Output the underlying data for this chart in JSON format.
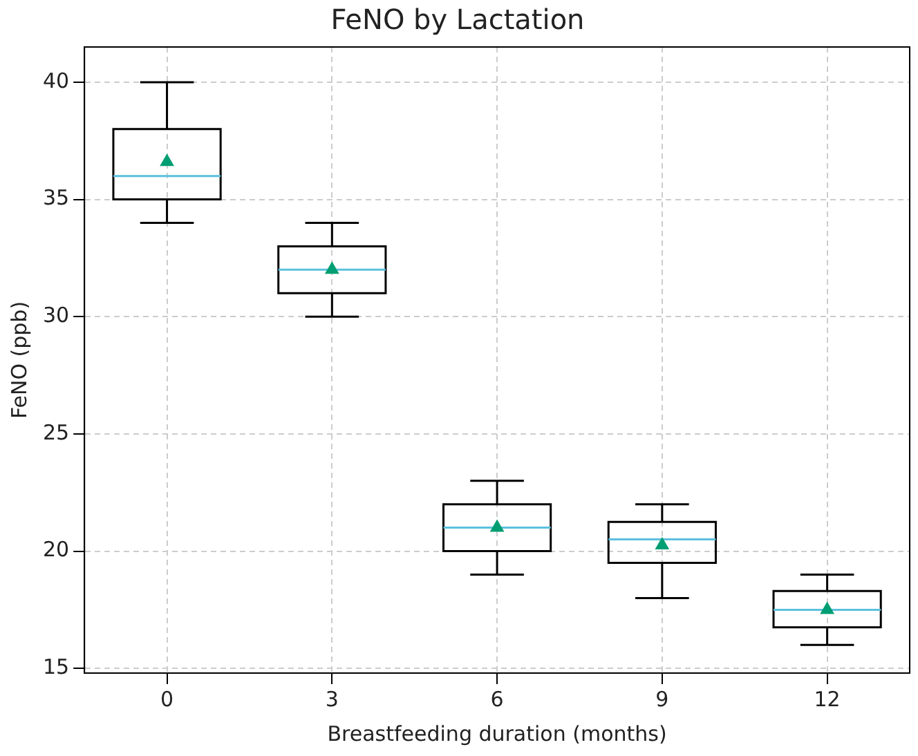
{
  "chart_data": {
    "type": "box",
    "title": "FeNO by Lactation",
    "xlabel": "Breastfeeding duration (months)",
    "ylabel": "FeNO (ppb)",
    "categories": [
      "0",
      "3",
      "6",
      "9",
      "12"
    ],
    "boxes": [
      {
        "low": 34,
        "q1": 35,
        "median": 36,
        "q3": 38,
        "high": 40,
        "mean": 36.6
      },
      {
        "low": 30,
        "q1": 31,
        "median": 32,
        "q3": 33,
        "high": 34,
        "mean": 32
      },
      {
        "low": 19,
        "q1": 20,
        "median": 21,
        "q3": 22,
        "high": 23,
        "mean": 21
      },
      {
        "low": 18,
        "q1": 19.5,
        "median": 20.5,
        "q3": 21.25,
        "high": 22,
        "mean": 20.25
      },
      {
        "low": 16,
        "q1": 16.75,
        "median": 17.5,
        "q3": 18.3,
        "high": 19,
        "mean": 17.5
      }
    ],
    "color": "#000000",
    "marker": "triangle",
    "ylim": [
      14.8,
      41.5
    ],
    "yticks": [
      15,
      20,
      25,
      30,
      35,
      40
    ],
    "grid": true,
    "legend": false
  }
}
